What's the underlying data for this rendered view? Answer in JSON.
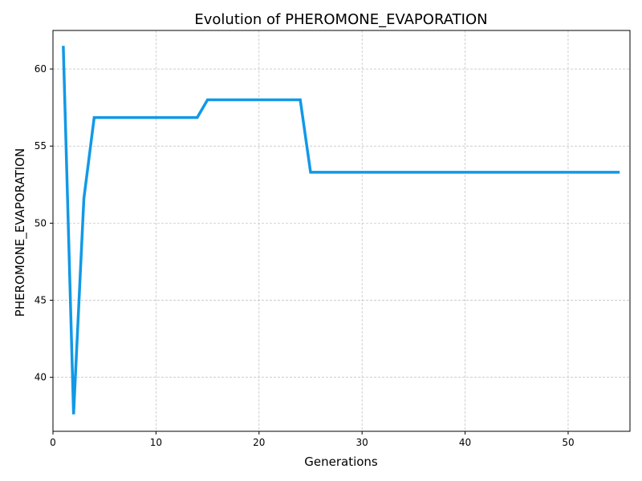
{
  "chart_data": {
    "type": "line",
    "title": "Evolution of PHEROMONE_EVAPORATION",
    "xlabel": "Generations",
    "ylabel": "PHEROMONE_EVAPORATION",
    "xlim": [
      0,
      56
    ],
    "ylim": [
      36.5,
      62.5
    ],
    "xticks": [
      0,
      10,
      20,
      30,
      40,
      50
    ],
    "yticks": [
      40,
      45,
      50,
      55,
      60
    ],
    "grid": true,
    "series": [
      {
        "color": "#1199e6",
        "x": [
          1,
          2,
          3,
          4,
          5,
          6,
          7,
          8,
          9,
          10,
          11,
          12,
          13,
          14,
          15,
          16,
          17,
          18,
          19,
          20,
          21,
          22,
          23,
          24,
          25,
          26,
          27,
          28,
          29,
          30,
          31,
          32,
          33,
          34,
          35,
          36,
          37,
          38,
          39,
          40,
          41,
          42,
          43,
          44,
          45,
          46,
          47,
          48,
          49,
          50,
          51,
          52,
          53,
          54,
          55
        ],
        "y": [
          61.5,
          37.6,
          51.6,
          56.85,
          56.85,
          56.85,
          56.85,
          56.85,
          56.85,
          56.85,
          56.85,
          56.85,
          56.85,
          56.85,
          58.0,
          58.0,
          58.0,
          58.0,
          58.0,
          58.0,
          58.0,
          58.0,
          58.0,
          58.0,
          53.3,
          53.3,
          53.3,
          53.3,
          53.3,
          53.3,
          53.3,
          53.3,
          53.3,
          53.3,
          53.3,
          53.3,
          53.3,
          53.3,
          53.3,
          53.3,
          53.3,
          53.3,
          53.3,
          53.3,
          53.3,
          53.3,
          53.3,
          53.3,
          53.3,
          53.3,
          53.3,
          53.3,
          53.3,
          53.3,
          53.3
        ]
      }
    ]
  }
}
